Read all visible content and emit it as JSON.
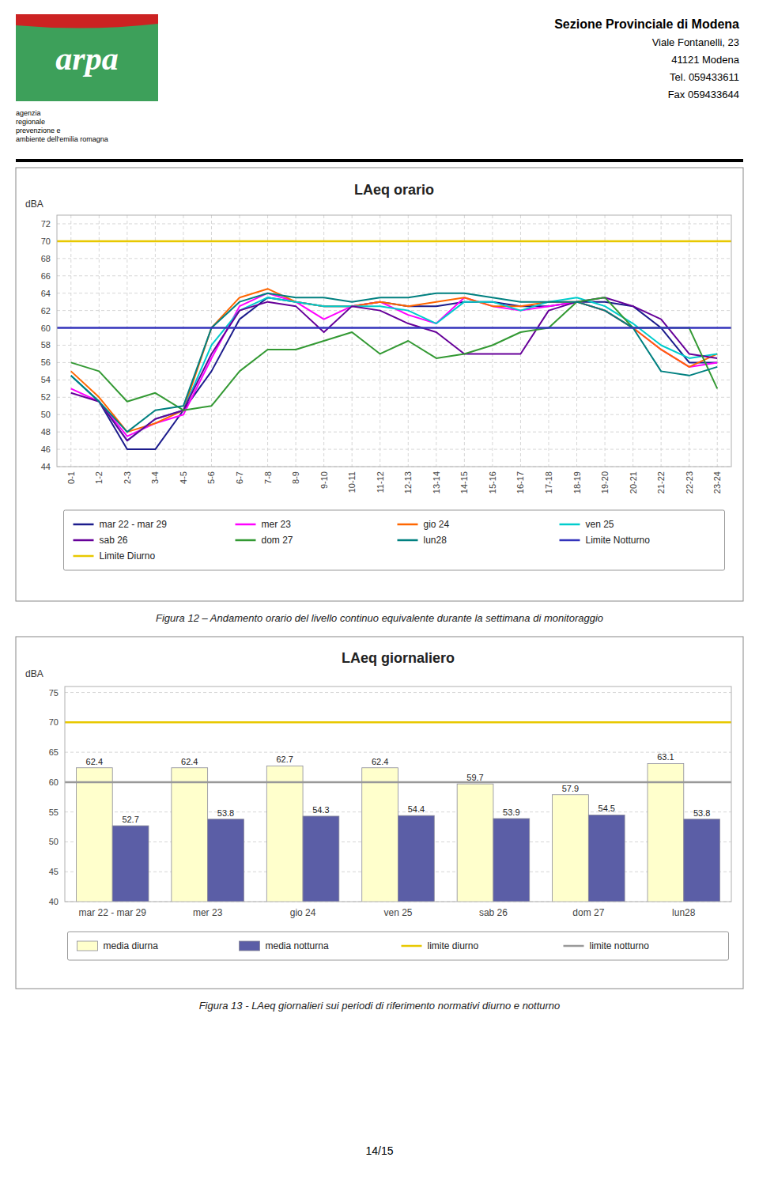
{
  "page": {
    "logo": "arpa",
    "logo_caption": [
      "agenzia",
      "regionale",
      "prevenzione e",
      "ambiente dell'emilia romagna"
    ],
    "header_text": [
      "Sezione Provinciale di Modena",
      "Viale Fontanelli, 23",
      "41121 Modena",
      "Tel. 059433611",
      "Fax 059433644"
    ],
    "page_number": "14/15"
  },
  "chart_data": [
    {
      "type": "line",
      "title": "LAeq orario",
      "y_label": "dBA",
      "categories": [
        "0-1",
        "1-2",
        "2-3",
        "3-4",
        "4-5",
        "5-6",
        "6-7",
        "7-8",
        "8-9",
        "9-10",
        "10-11",
        "11-12",
        "12-13",
        "13-14",
        "14-15",
        "15-16",
        "16-17",
        "17-18",
        "18-19",
        "19-20",
        "20-21",
        "21-22",
        "22-23",
        "23-24"
      ],
      "series": [
        {
          "name": "mar 22 - mar 29",
          "color": "#1C1C8C",
          "values": [
            54.5,
            51.5,
            46.0,
            46.0,
            50.5,
            55.0,
            61.0,
            63.5,
            63.0,
            62.5,
            62.5,
            63.0,
            62.5,
            62.5,
            63.0,
            63.0,
            62.5,
            62.5,
            63.0,
            63.0,
            62.5,
            60.0,
            56.0,
            56.0
          ]
        },
        {
          "name": "mer 23",
          "color": "#FF00FF",
          "values": [
            53.0,
            51.5,
            47.5,
            49.0,
            50.0,
            56.5,
            62.5,
            64.0,
            63.0,
            61.0,
            62.5,
            63.0,
            61.5,
            60.5,
            63.5,
            62.5,
            62.0,
            62.5,
            63.0,
            62.0,
            60.0,
            57.5,
            55.5,
            56.0
          ]
        },
        {
          "name": "gio 24",
          "color": "#FF6600",
          "values": [
            55.0,
            52.0,
            48.0,
            49.0,
            50.5,
            60.0,
            63.5,
            64.5,
            63.0,
            62.5,
            62.5,
            63.0,
            62.5,
            63.0,
            63.5,
            62.5,
            62.5,
            63.0,
            63.0,
            62.0,
            60.0,
            57.5,
            55.5,
            57.0
          ]
        },
        {
          "name": "ven 25",
          "color": "#00CCCC",
          "values": [
            54.5,
            51.5,
            47.0,
            49.5,
            50.5,
            58.0,
            62.0,
            63.5,
            63.0,
            62.5,
            62.5,
            62.5,
            62.0,
            60.5,
            63.0,
            63.0,
            62.0,
            63.0,
            63.5,
            62.5,
            60.5,
            58.0,
            56.5,
            57.0
          ]
        },
        {
          "name": "sab 26",
          "color": "#660099",
          "values": [
            52.5,
            51.5,
            47.0,
            49.5,
            50.5,
            57.0,
            62.0,
            63.0,
            62.5,
            59.5,
            62.5,
            62.0,
            60.5,
            59.5,
            57.0,
            57.0,
            57.0,
            62.0,
            63.0,
            63.5,
            62.5,
            61.0,
            57.0,
            56.5
          ]
        },
        {
          "name": "dom 27",
          "color": "#339933",
          "values": [
            56.0,
            55.0,
            51.5,
            52.5,
            50.5,
            51.0,
            55.0,
            57.5,
            57.5,
            58.5,
            59.5,
            57.0,
            58.5,
            56.5,
            57.0,
            58.0,
            59.5,
            60.0,
            63.0,
            63.5,
            60.0,
            60.0,
            60.0,
            53.0
          ]
        },
        {
          "name": "lun28",
          "color": "#008080",
          "values": [
            54.5,
            51.5,
            48.0,
            50.5,
            51.0,
            60.0,
            63.0,
            64.0,
            63.5,
            63.5,
            63.0,
            63.5,
            63.5,
            64.0,
            64.0,
            63.5,
            63.0,
            63.0,
            63.0,
            62.0,
            60.0,
            55.0,
            54.5,
            55.5
          ]
        }
      ],
      "reference_lines": [
        {
          "name": "Limite Notturno",
          "value": 60,
          "color": "#3333BB"
        },
        {
          "name": "Limite Diurno",
          "value": 70,
          "color": "#E8C800"
        }
      ],
      "ylim": [
        44,
        73
      ],
      "yticks": [
        44,
        46,
        48,
        50,
        52,
        54,
        56,
        58,
        60,
        62,
        64,
        66,
        68,
        70,
        72
      ],
      "grid": true,
      "legend": "bottom",
      "caption": "Figura 12 – Andamento orario del livello continuo equivalente durante la settimana di monitoraggio"
    },
    {
      "type": "bar",
      "title": "LAeq giornaliero",
      "y_label": "dBA",
      "categories": [
        "mar 22 - mar 29",
        "mer 23",
        "gio 24",
        "ven 25",
        "sab 26",
        "dom 27",
        "lun28"
      ],
      "series": [
        {
          "name": "media diurna",
          "color": "#FFFFCC",
          "values": [
            62.4,
            62.4,
            62.7,
            62.4,
            59.7,
            57.9,
            63.1
          ]
        },
        {
          "name": "media notturna",
          "color": "#5B5EA6",
          "values": [
            52.7,
            53.8,
            54.3,
            54.4,
            53.9,
            54.5,
            53.8
          ]
        }
      ],
      "reference_lines": [
        {
          "name": "limite diurno",
          "value": 70,
          "color": "#E8C800"
        },
        {
          "name": "limite notturno",
          "value": 60,
          "color": "#999999"
        }
      ],
      "ylim": [
        40,
        76
      ],
      "yticks": [
        40,
        45,
        50,
        55,
        60,
        65,
        70,
        75
      ],
      "grid": "y",
      "legend": "bottom",
      "data_labels": true,
      "caption": "Figura 13 - LAeq giornalieri sui periodi di riferimento normativi diurno e notturno"
    }
  ]
}
